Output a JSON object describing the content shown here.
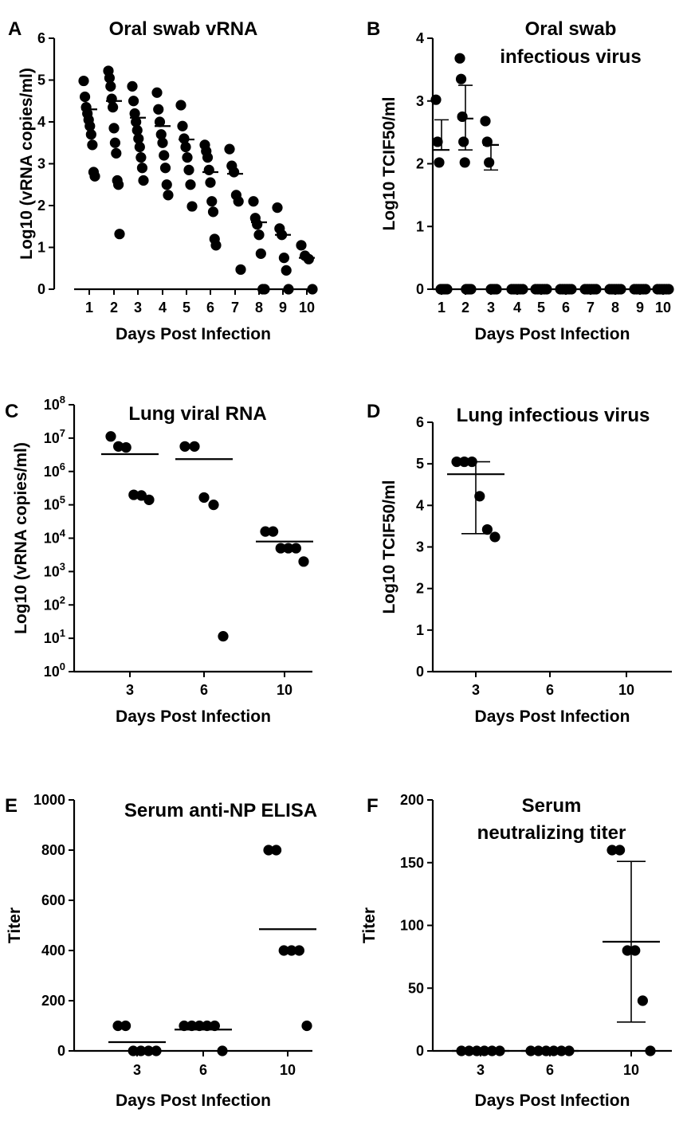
{
  "chart_data": [
    {
      "panel": "A",
      "type": "scatter",
      "title": "Oral swab vRNA",
      "xlabel": "Days Post Infection",
      "ylabel": "Log10 (vRNA copies/ml)",
      "categories": [
        "1",
        "2",
        "3",
        "4",
        "5",
        "6",
        "7",
        "8",
        "9",
        "10"
      ],
      "yticks": [
        "0",
        "1",
        "2",
        "3",
        "4",
        "5",
        "6"
      ],
      "ylim": [
        0,
        6
      ],
      "points": [
        [
          4.98,
          4.6,
          4.35,
          4.2,
          4.05,
          3.9,
          3.7,
          3.45,
          2.8,
          2.7
        ],
        [
          5.22,
          5.05,
          4.85,
          4.55,
          4.35,
          3.85,
          3.5,
          3.25,
          2.6,
          2.5,
          1.32
        ],
        [
          4.85,
          4.5,
          4.2,
          4.0,
          3.8,
          3.6,
          3.4,
          3.15,
          2.9,
          2.6
        ],
        [
          4.7,
          4.3,
          4.0,
          3.7,
          3.5,
          3.2,
          2.9,
          2.5,
          2.25
        ],
        [
          4.4,
          3.9,
          3.6,
          3.4,
          3.15,
          2.85,
          2.5,
          1.98
        ],
        [
          3.45,
          3.3,
          3.15,
          2.85,
          2.55,
          2.1,
          1.85,
          1.2,
          1.05
        ],
        [
          3.35,
          2.95,
          2.8,
          2.25,
          2.1,
          0.47
        ],
        [
          2.1,
          1.7,
          1.55,
          1.3,
          0.85,
          0.0,
          0.0
        ],
        [
          1.95,
          1.45,
          1.3,
          0.75,
          0.45,
          0.0
        ],
        [
          1.05,
          0.8,
          0.72,
          0.0
        ]
      ],
      "means": [
        4.3,
        4.5,
        4.1,
        3.9,
        3.58,
        2.8,
        2.76,
        1.6,
        1.3,
        0.75
      ],
      "errors": null
    },
    {
      "panel": "B",
      "type": "scatter",
      "title": [
        "Oral swab",
        "infectious virus"
      ],
      "xlabel": "Days Post Infection",
      "ylabel": "Log10 TCIF50/ml",
      "categories": [
        "1",
        "2",
        "3",
        "4",
        "5",
        "6",
        "7",
        "8",
        "9",
        "10"
      ],
      "yticks": [
        "0",
        "1",
        "2",
        "3",
        "4"
      ],
      "ylim": [
        0,
        4
      ],
      "points": [
        [
          3.02,
          2.35,
          2.02,
          0,
          0,
          0,
          0,
          0
        ],
        [
          3.68,
          3.35,
          2.75,
          2.35,
          2.02,
          0,
          0,
          0,
          0,
          0
        ],
        [
          2.68,
          2.35,
          2.02,
          0,
          0,
          0,
          0
        ],
        [
          0,
          0,
          0,
          0,
          0,
          0
        ],
        [
          0,
          0,
          0,
          0,
          0,
          0
        ],
        [
          0,
          0,
          0,
          0,
          0,
          0
        ],
        [
          0,
          0,
          0,
          0,
          0,
          0
        ],
        [
          0,
          0,
          0,
          0,
          0,
          0
        ],
        [
          0,
          0,
          0,
          0,
          0,
          0
        ],
        [
          0,
          0,
          0,
          0,
          0,
          0
        ]
      ],
      "means": [
        2.22,
        2.72,
        2.3,
        0,
        0,
        0,
        0,
        0,
        0,
        0
      ],
      "errors": [
        [
          2.22,
          2.7
        ],
        [
          2.22,
          3.25
        ],
        [
          1.9,
          2.3
        ],
        null,
        null,
        null,
        null,
        null,
        null,
        null
      ]
    },
    {
      "panel": "C",
      "type": "scatter",
      "title": "Lung viral RNA",
      "xlabel": "Days Post Infection",
      "ylabel": "Log10 (vRNA copies/ml)",
      "yscale": "log",
      "categories": [
        "3",
        "6",
        "10"
      ],
      "ytick_base": "10",
      "ytick_exponents": [
        "0",
        "1",
        "2",
        "3",
        "4",
        "5",
        "6",
        "7",
        "8"
      ],
      "ylim": [
        0,
        8
      ],
      "points": [
        [
          7.05,
          6.75,
          6.72,
          5.3,
          5.28,
          5.15
        ],
        [
          6.75,
          6.75,
          5.22,
          5.0,
          1.06
        ],
        [
          4.2,
          4.2,
          3.7,
          3.7,
          3.7,
          3.3
        ]
      ],
      "means": [
        6.52,
        6.37,
        3.9
      ],
      "errors": null
    },
    {
      "panel": "D",
      "type": "scatter",
      "title": "Lung infectious virus",
      "xlabel": "Days Post Infection",
      "ylabel": "Log10 TCIF50/ml",
      "categories": [
        "3",
        "6",
        "10"
      ],
      "yticks": [
        "0",
        "1",
        "2",
        "3",
        "4",
        "5",
        "6"
      ],
      "ylim": [
        0,
        6
      ],
      "points": [
        [
          5.05,
          5.05,
          5.05,
          4.22,
          3.42,
          3.24
        ],
        [],
        []
      ],
      "means": [
        4.75,
        null,
        null
      ],
      "errors": [
        [
          3.32,
          5.05
        ],
        null,
        null
      ]
    },
    {
      "panel": "E",
      "type": "scatter",
      "title": "Serum anti-NP ELISA",
      "xlabel": "Days Post Infection",
      "ylabel": "Titer",
      "categories": [
        "3",
        "6",
        "10"
      ],
      "yticks": [
        "0",
        "200",
        "400",
        "600",
        "800",
        "1000"
      ],
      "ylim": [
        0,
        1000
      ],
      "points": [
        [
          100,
          100,
          0,
          0,
          0,
          0
        ],
        [
          100,
          100,
          100,
          100,
          100,
          0
        ],
        [
          800,
          800,
          400,
          400,
          400,
          100
        ]
      ],
      "means": [
        35,
        85,
        485
      ],
      "errors": null
    },
    {
      "panel": "F",
      "type": "scatter",
      "title": [
        "Serum",
        "neutralizing titer"
      ],
      "xlabel": "Days Post Infection",
      "ylabel": "Titer",
      "categories": [
        "3",
        "6",
        "10"
      ],
      "yticks": [
        "0",
        "50",
        "100",
        "150",
        "200"
      ],
      "ylim": [
        0,
        200
      ],
      "points": [
        [
          0,
          0,
          0,
          0,
          0,
          0
        ],
        [
          0,
          0,
          0,
          0,
          0,
          0
        ],
        [
          160,
          160,
          80,
          80,
          40,
          0
        ]
      ],
      "means": [
        0,
        0,
        87
      ],
      "errors": [
        null,
        null,
        [
          23,
          151
        ]
      ]
    }
  ]
}
